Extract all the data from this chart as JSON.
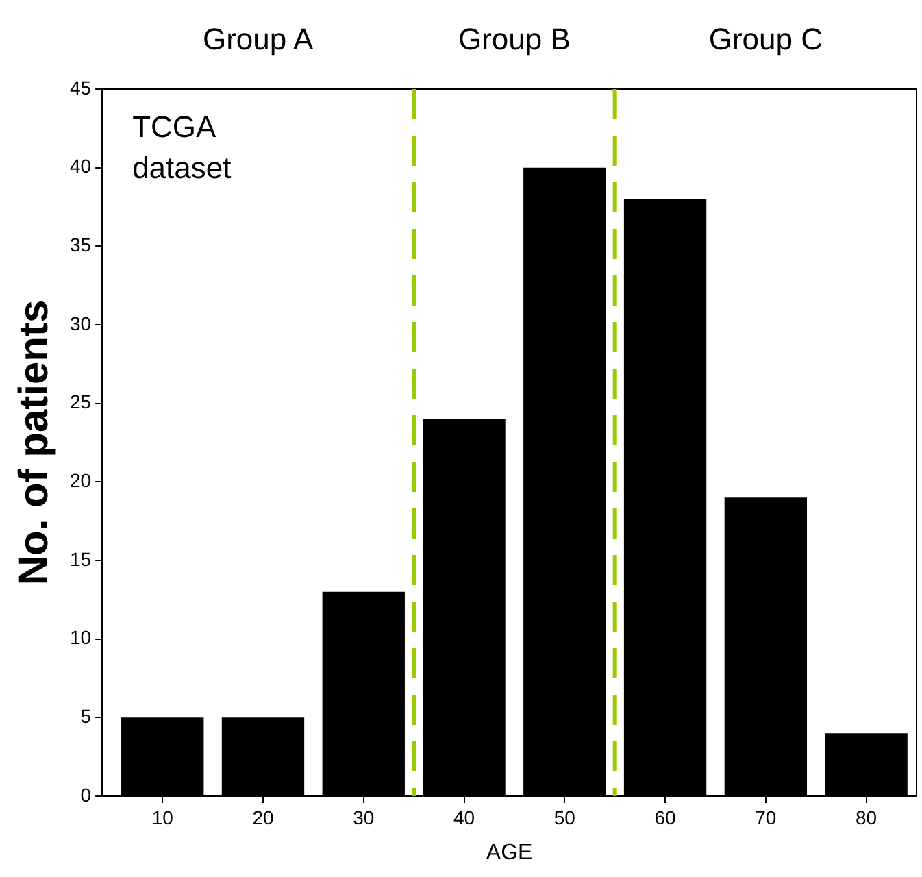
{
  "chart_data": {
    "type": "histogram",
    "xlabel": "AGE",
    "ylabel": "No. of patients",
    "bins": [
      5,
      15,
      25,
      35,
      45,
      55,
      65,
      75,
      85
    ],
    "values": [
      5,
      5,
      13,
      24,
      40,
      38,
      19,
      4
    ],
    "color": "#000000",
    "xlim": [
      4,
      85
    ],
    "xticks": [
      10,
      20,
      30,
      40,
      50,
      60,
      70,
      80
    ],
    "ylim": [
      0,
      45
    ],
    "yticks": [
      0,
      5,
      10,
      15,
      20,
      25,
      30,
      35,
      40,
      45
    ],
    "grid": false,
    "legend": false,
    "ref_lines": [
      {
        "axis": "x",
        "value": 35,
        "color": "#99cc00",
        "line_style": "dashed"
      },
      {
        "axis": "x",
        "value": 55,
        "color": "#99cc00",
        "line_style": "dashed"
      }
    ],
    "annotations": [
      "Group A",
      "Group B",
      "Group C",
      "TCGA dataset"
    ]
  }
}
